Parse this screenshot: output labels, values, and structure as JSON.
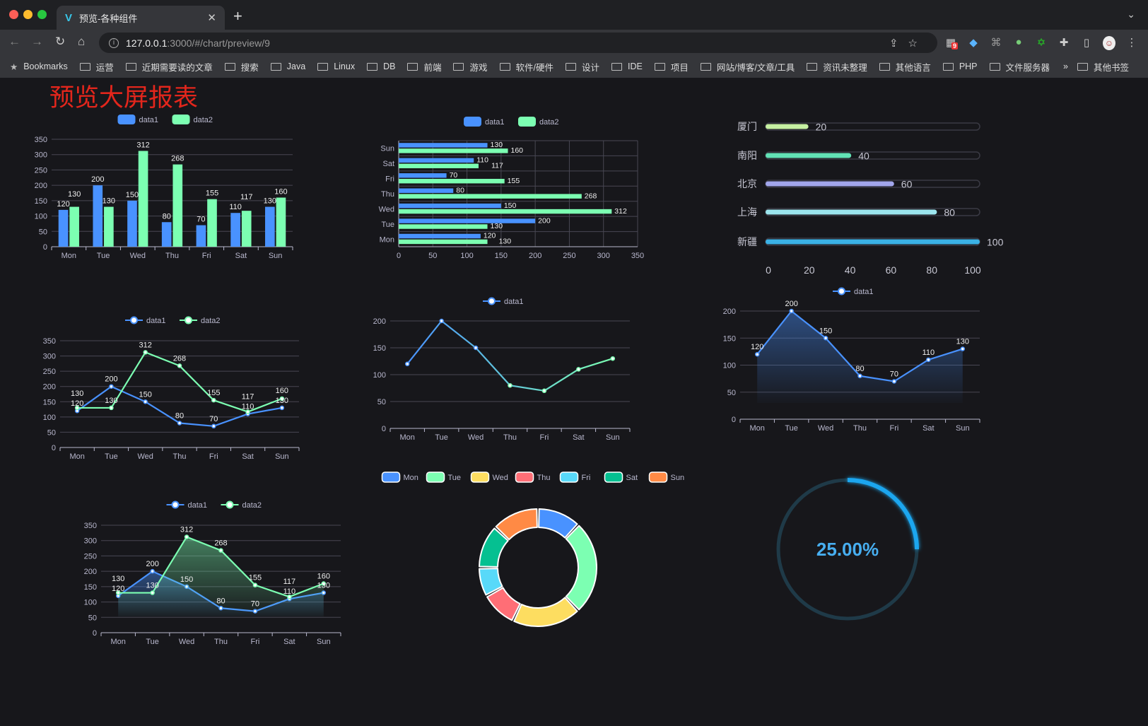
{
  "browser": {
    "tab_title": "预览-各种组件",
    "url_host": "127.0.0.1",
    "url_path": ":3000/#/chart/preview/9",
    "extension_badge": "9",
    "bookmarks_label": "Bookmarks",
    "bookmark_folders": [
      "运营",
      "近期需要读的文章",
      "搜索",
      "Java",
      "Linux",
      "DB",
      "前端",
      "游戏",
      "软件/硬件",
      "设计",
      "IDE",
      "项目",
      "网站/博客/文章/工具",
      "资讯未整理",
      "其他语言",
      "PHP",
      "文件服务器"
    ],
    "other_bookmarks": "其他书签"
  },
  "page": {
    "title": "预览大屏报表"
  },
  "chart_data": [
    {
      "type": "bar",
      "orientation": "vertical",
      "legend": [
        "data1",
        "data2"
      ],
      "categories": [
        "Mon",
        "Tue",
        "Wed",
        "Thu",
        "Fri",
        "Sat",
        "Sun"
      ],
      "series": [
        {
          "name": "data1",
          "values": [
            120,
            200,
            150,
            80,
            70,
            110,
            130
          ],
          "color": "#4992ff"
        },
        {
          "name": "data2",
          "values": [
            130,
            130,
            312,
            268,
            155,
            117,
            160
          ],
          "color": "#7cffb2"
        }
      ],
      "ylim": [
        0,
        350
      ],
      "yticks": [
        0,
        50,
        100,
        150,
        200,
        250,
        300,
        350
      ],
      "grid": true,
      "legend_position": "top-center"
    },
    {
      "type": "bar",
      "orientation": "horizontal",
      "legend": [
        "data1",
        "data2"
      ],
      "categories": [
        "Mon",
        "Tue",
        "Wed",
        "Thu",
        "Fri",
        "Sat",
        "Sun"
      ],
      "series": [
        {
          "name": "data1",
          "values": [
            120,
            200,
            150,
            80,
            70,
            110,
            130
          ],
          "color": "#4992ff"
        },
        {
          "name": "data2",
          "values": [
            130,
            130,
            312,
            268,
            155,
            117,
            160
          ],
          "color": "#7cffb2"
        }
      ],
      "xlim": [
        0,
        350
      ],
      "xticks": [
        0,
        50,
        100,
        150,
        200,
        250,
        300,
        350
      ],
      "grid": true,
      "legend_position": "top-center"
    },
    {
      "type": "bar",
      "orientation": "horizontal",
      "style": "progress",
      "categories": [
        "厦门",
        "南阳",
        "北京",
        "上海",
        "新疆"
      ],
      "values": [
        20,
        40,
        60,
        80,
        100
      ],
      "colors": [
        "#c6f0a2",
        "#62e2b6",
        "#a2a6ec",
        "#9ce6ee",
        "#3bb2e6"
      ],
      "xlim": [
        0,
        100
      ],
      "xticks": [
        0,
        20,
        40,
        60,
        80,
        100
      ],
      "grid": false
    },
    {
      "type": "line",
      "legend": [
        "data1",
        "data2"
      ],
      "categories": [
        "Mon",
        "Tue",
        "Wed",
        "Thu",
        "Fri",
        "Sat",
        "Sun"
      ],
      "series": [
        {
          "name": "data1",
          "values": [
            120,
            200,
            150,
            80,
            70,
            110,
            130
          ],
          "color": "#4992ff"
        },
        {
          "name": "data2",
          "values": [
            130,
            130,
            312,
            268,
            155,
            117,
            160
          ],
          "color": "#7cffb2"
        }
      ],
      "ylim": [
        0,
        350
      ],
      "yticks": [
        0,
        50,
        100,
        150,
        200,
        250,
        300,
        350
      ],
      "grid": true,
      "legend_position": "top-center"
    },
    {
      "type": "line",
      "legend": [
        "data1"
      ],
      "categories": [
        "Mon",
        "Tue",
        "Wed",
        "Thu",
        "Fri",
        "Sat",
        "Sun"
      ],
      "series": [
        {
          "name": "data1",
          "values": [
            120,
            200,
            150,
            80,
            70,
            110,
            130
          ],
          "color": "#4992ff",
          "gradient_to": "#7cffb2"
        }
      ],
      "ylim": [
        0,
        200
      ],
      "yticks": [
        0,
        50,
        100,
        150,
        200
      ],
      "grid": true,
      "labels": false,
      "legend_position": "top-center"
    },
    {
      "type": "area",
      "legend": [
        "data1"
      ],
      "categories": [
        "Mon",
        "Tue",
        "Wed",
        "Thu",
        "Fri",
        "Sat",
        "Sun"
      ],
      "series": [
        {
          "name": "data1",
          "values": [
            120,
            200,
            150,
            80,
            70,
            110,
            130
          ],
          "color": "#4992ff"
        }
      ],
      "ylim": [
        0,
        200
      ],
      "yticks": [
        0,
        50,
        100,
        150,
        200
      ],
      "grid": true,
      "legend_position": "top-center"
    },
    {
      "type": "area",
      "legend": [
        "data1",
        "data2"
      ],
      "categories": [
        "Mon",
        "Tue",
        "Wed",
        "Thu",
        "Fri",
        "Sat",
        "Sun"
      ],
      "series": [
        {
          "name": "data1",
          "values": [
            120,
            200,
            150,
            80,
            70,
            110,
            130
          ],
          "color": "#4992ff"
        },
        {
          "name": "data2",
          "values": [
            130,
            130,
            312,
            268,
            155,
            117,
            160
          ],
          "color": "#7cffb2"
        }
      ],
      "ylim": [
        0,
        350
      ],
      "yticks": [
        0,
        50,
        100,
        150,
        200,
        250,
        300,
        350
      ],
      "grid": true,
      "legend_position": "top-center"
    },
    {
      "type": "pie",
      "style": "donut",
      "categories": [
        "Mon",
        "Tue",
        "Wed",
        "Thu",
        "Fri",
        "Sat",
        "Sun"
      ],
      "values": [
        12,
        26,
        19,
        10,
        8,
        12,
        13
      ],
      "colors": [
        "#4992ff",
        "#7cffb2",
        "#fddd60",
        "#ff6e76",
        "#58d9f9",
        "#05c091",
        "#ff8a45"
      ],
      "legend_position": "top-center"
    },
    {
      "type": "gauge",
      "value": 25,
      "label": "25.00%",
      "color": "#1aa6ef",
      "track_color": "#1f3a48"
    }
  ]
}
